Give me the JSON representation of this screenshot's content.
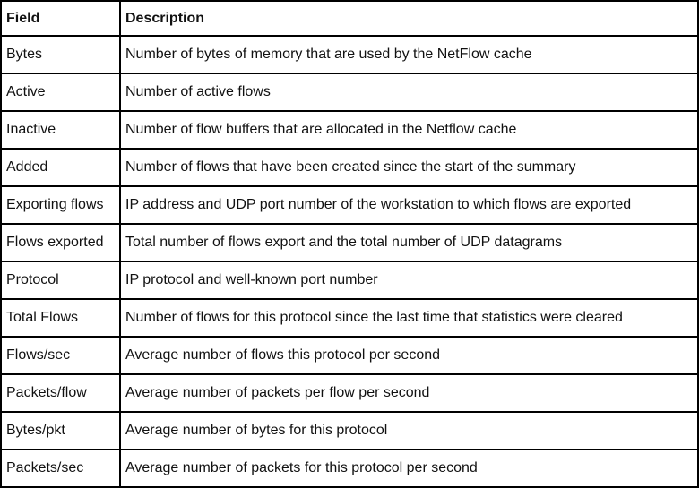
{
  "table": {
    "columns": [
      "Field",
      "Description"
    ],
    "rows": [
      [
        "Bytes",
        "Number of bytes of memory that are used by the NetFlow cache"
      ],
      [
        "Active",
        "Number of active flows"
      ],
      [
        "Inactive",
        "Number of flow buffers that are allocated in the Netflow cache"
      ],
      [
        "Added",
        "Number of flows that have been created since the start of the summary"
      ],
      [
        "Exporting flows",
        "IP address and UDP port number of the workstation to which flows are exported"
      ],
      [
        "Flows exported",
        "Total number of flows export and the total number of UDP datagrams"
      ],
      [
        "Protocol",
        "IP protocol and well-known port number"
      ],
      [
        "Total Flows",
        "Number of flows for this protocol since the last time that statistics were cleared"
      ],
      [
        "Flows/sec",
        "Average number of flows this protocol per second"
      ],
      [
        "Packets/flow",
        "Average number of packets per flow per second"
      ],
      [
        "Bytes/pkt",
        "Average number of bytes for this protocol"
      ],
      [
        "Packets/sec",
        "Average number of packets for this protocol per second"
      ]
    ]
  }
}
